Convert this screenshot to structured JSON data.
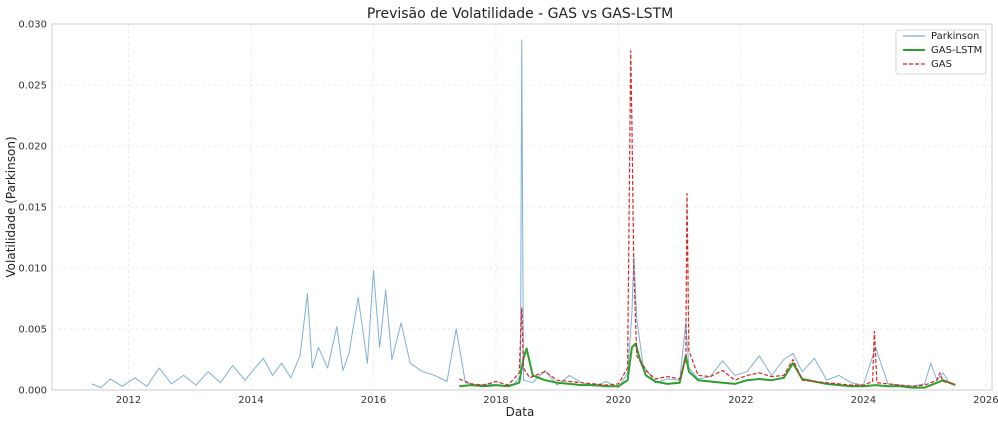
{
  "chart_data": {
    "type": "line",
    "title": "Previsão de Volatilidade - GAS vs GAS-LSTM",
    "xlabel": "Data",
    "ylabel": "Volatilidade (Parkinson)",
    "x_type": "year",
    "xlim": [
      2010.75,
      2026.1
    ],
    "ylim": [
      0.0,
      0.03
    ],
    "x_ticks": [
      2012,
      2014,
      2016,
      2018,
      2020,
      2022,
      2024,
      2026
    ],
    "x_tick_labels": [
      "2012",
      "2014",
      "2016",
      "2018",
      "2020",
      "2022",
      "2024",
      "2026"
    ],
    "y_ticks": [
      0.0,
      0.005,
      0.01,
      0.015,
      0.02,
      0.025,
      0.03
    ],
    "y_tick_labels": [
      "0.000",
      "0.005",
      "0.010",
      "0.015",
      "0.020",
      "0.025",
      "0.030"
    ],
    "grid": true,
    "legend_position": "top-right",
    "series": [
      {
        "name": "Parkinson",
        "color": "#7fb0d6",
        "style": "solid",
        "x": [
          2011.4,
          2011.55,
          2011.7,
          2011.9,
          2012.1,
          2012.3,
          2012.5,
          2012.7,
          2012.9,
          2013.1,
          2013.3,
          2013.5,
          2013.7,
          2013.9,
          2014.0,
          2014.2,
          2014.35,
          2014.5,
          2014.65,
          2014.8,
          2014.92,
          2015.0,
          2015.1,
          2015.25,
          2015.4,
          2015.5,
          2015.6,
          2015.75,
          2015.9,
          2016.0,
          2016.1,
          2016.2,
          2016.3,
          2016.45,
          2016.6,
          2016.8,
          2017.0,
          2017.2,
          2017.35,
          2017.5,
          2017.7,
          2017.9,
          2018.1,
          2018.3,
          2018.4,
          2018.42,
          2018.45,
          2018.6,
          2018.8,
          2019.0,
          2019.2,
          2019.4,
          2019.6,
          2019.8,
          2020.0,
          2020.15,
          2020.22,
          2020.25,
          2020.3,
          2020.4,
          2020.6,
          2020.8,
          2021.0,
          2021.1,
          2021.15,
          2021.3,
          2021.5,
          2021.7,
          2021.9,
          2022.1,
          2022.3,
          2022.5,
          2022.7,
          2022.85,
          2023.0,
          2023.2,
          2023.4,
          2023.6,
          2023.8,
          2024.0,
          2024.2,
          2024.4,
          2024.6,
          2024.8,
          2025.0,
          2025.1,
          2025.2,
          2025.3,
          2025.4,
          2025.5
        ],
        "values": [
          0.0005,
          0.0002,
          0.0009,
          0.0003,
          0.001,
          0.0003,
          0.0018,
          0.0005,
          0.0012,
          0.0004,
          0.0015,
          0.0006,
          0.002,
          0.0008,
          0.0014,
          0.0026,
          0.0012,
          0.0022,
          0.001,
          0.0028,
          0.0079,
          0.0018,
          0.0035,
          0.0018,
          0.0052,
          0.0016,
          0.003,
          0.0076,
          0.0022,
          0.0098,
          0.0035,
          0.0082,
          0.0025,
          0.0055,
          0.0022,
          0.0015,
          0.0012,
          0.0007,
          0.005,
          0.0006,
          0.0004,
          0.0005,
          0.0003,
          0.0005,
          0.0012,
          0.0287,
          0.0008,
          0.0006,
          0.0016,
          0.0004,
          0.0012,
          0.0006,
          0.0003,
          0.0007,
          0.0002,
          0.0014,
          0.0062,
          0.011,
          0.0058,
          0.0021,
          0.0006,
          0.0009,
          0.0008,
          0.0055,
          0.0018,
          0.0009,
          0.0011,
          0.0024,
          0.0012,
          0.0015,
          0.0028,
          0.0012,
          0.0025,
          0.003,
          0.0015,
          0.0026,
          0.0008,
          0.0012,
          0.0006,
          0.0004,
          0.0035,
          0.0005,
          0.0004,
          0.0003,
          0.0005,
          0.0022,
          0.0008,
          0.0014,
          0.0006,
          0.0004
        ]
      },
      {
        "name": "GAS-LSTM",
        "color": "#2ca02c",
        "style": "solid",
        "x": [
          2017.4,
          2017.6,
          2017.8,
          2018.0,
          2018.2,
          2018.38,
          2018.45,
          2018.5,
          2018.6,
          2018.8,
          2019.0,
          2019.2,
          2019.4,
          2019.6,
          2019.8,
          2020.0,
          2020.15,
          2020.22,
          2020.28,
          2020.35,
          2020.45,
          2020.6,
          2020.8,
          2021.0,
          2021.1,
          2021.15,
          2021.3,
          2021.5,
          2021.7,
          2021.9,
          2022.1,
          2022.3,
          2022.5,
          2022.7,
          2022.85,
          2023.0,
          2023.2,
          2023.4,
          2023.6,
          2023.8,
          2024.0,
          2024.2,
          2024.4,
          2024.6,
          2024.8,
          2025.0,
          2025.2,
          2025.3,
          2025.5
        ],
        "values": [
          0.0003,
          0.0004,
          0.0003,
          0.0004,
          0.0003,
          0.0006,
          0.0026,
          0.0034,
          0.0012,
          0.0008,
          0.0006,
          0.0005,
          0.0004,
          0.0004,
          0.0003,
          0.0003,
          0.0008,
          0.0035,
          0.0038,
          0.0025,
          0.0012,
          0.0007,
          0.0005,
          0.0006,
          0.0028,
          0.0015,
          0.0008,
          0.0007,
          0.0006,
          0.0005,
          0.0008,
          0.0009,
          0.0008,
          0.001,
          0.0022,
          0.0009,
          0.0007,
          0.0005,
          0.0004,
          0.0003,
          0.0003,
          0.0004,
          0.0003,
          0.0003,
          0.0002,
          0.0002,
          0.0006,
          0.0008,
          0.0004
        ]
      },
      {
        "name": "GAS",
        "color": "#d62728",
        "style": "dashed",
        "x": [
          2017.4,
          2017.6,
          2017.8,
          2018.0,
          2018.2,
          2018.38,
          2018.42,
          2018.45,
          2018.55,
          2018.8,
          2019.0,
          2019.2,
          2019.4,
          2019.6,
          2019.8,
          2020.0,
          2020.15,
          2020.2,
          2020.22,
          2020.25,
          2020.3,
          2020.45,
          2020.6,
          2020.8,
          2021.0,
          2021.1,
          2021.12,
          2021.15,
          2021.3,
          2021.5,
          2021.7,
          2021.9,
          2022.1,
          2022.3,
          2022.5,
          2022.7,
          2022.85,
          2023.0,
          2023.2,
          2023.4,
          2023.6,
          2023.8,
          2024.0,
          2024.15,
          2024.18,
          2024.22,
          2024.4,
          2024.6,
          2024.8,
          2025.0,
          2025.2,
          2025.25,
          2025.3,
          2025.5
        ],
        "values": [
          0.0009,
          0.0005,
          0.0004,
          0.0007,
          0.0004,
          0.0014,
          0.0067,
          0.0018,
          0.001,
          0.0015,
          0.0008,
          0.0007,
          0.0006,
          0.0005,
          0.0004,
          0.0005,
          0.0018,
          0.0278,
          0.022,
          0.0098,
          0.0028,
          0.0016,
          0.0009,
          0.0011,
          0.0009,
          0.0025,
          0.0161,
          0.0032,
          0.0012,
          0.0011,
          0.0016,
          0.0008,
          0.0012,
          0.0014,
          0.0011,
          0.0012,
          0.0025,
          0.0008,
          0.0007,
          0.0006,
          0.0005,
          0.0004,
          0.0004,
          0.0007,
          0.0048,
          0.0006,
          0.0005,
          0.0004,
          0.0003,
          0.0004,
          0.0008,
          0.0014,
          0.0007,
          0.0005
        ]
      }
    ]
  }
}
